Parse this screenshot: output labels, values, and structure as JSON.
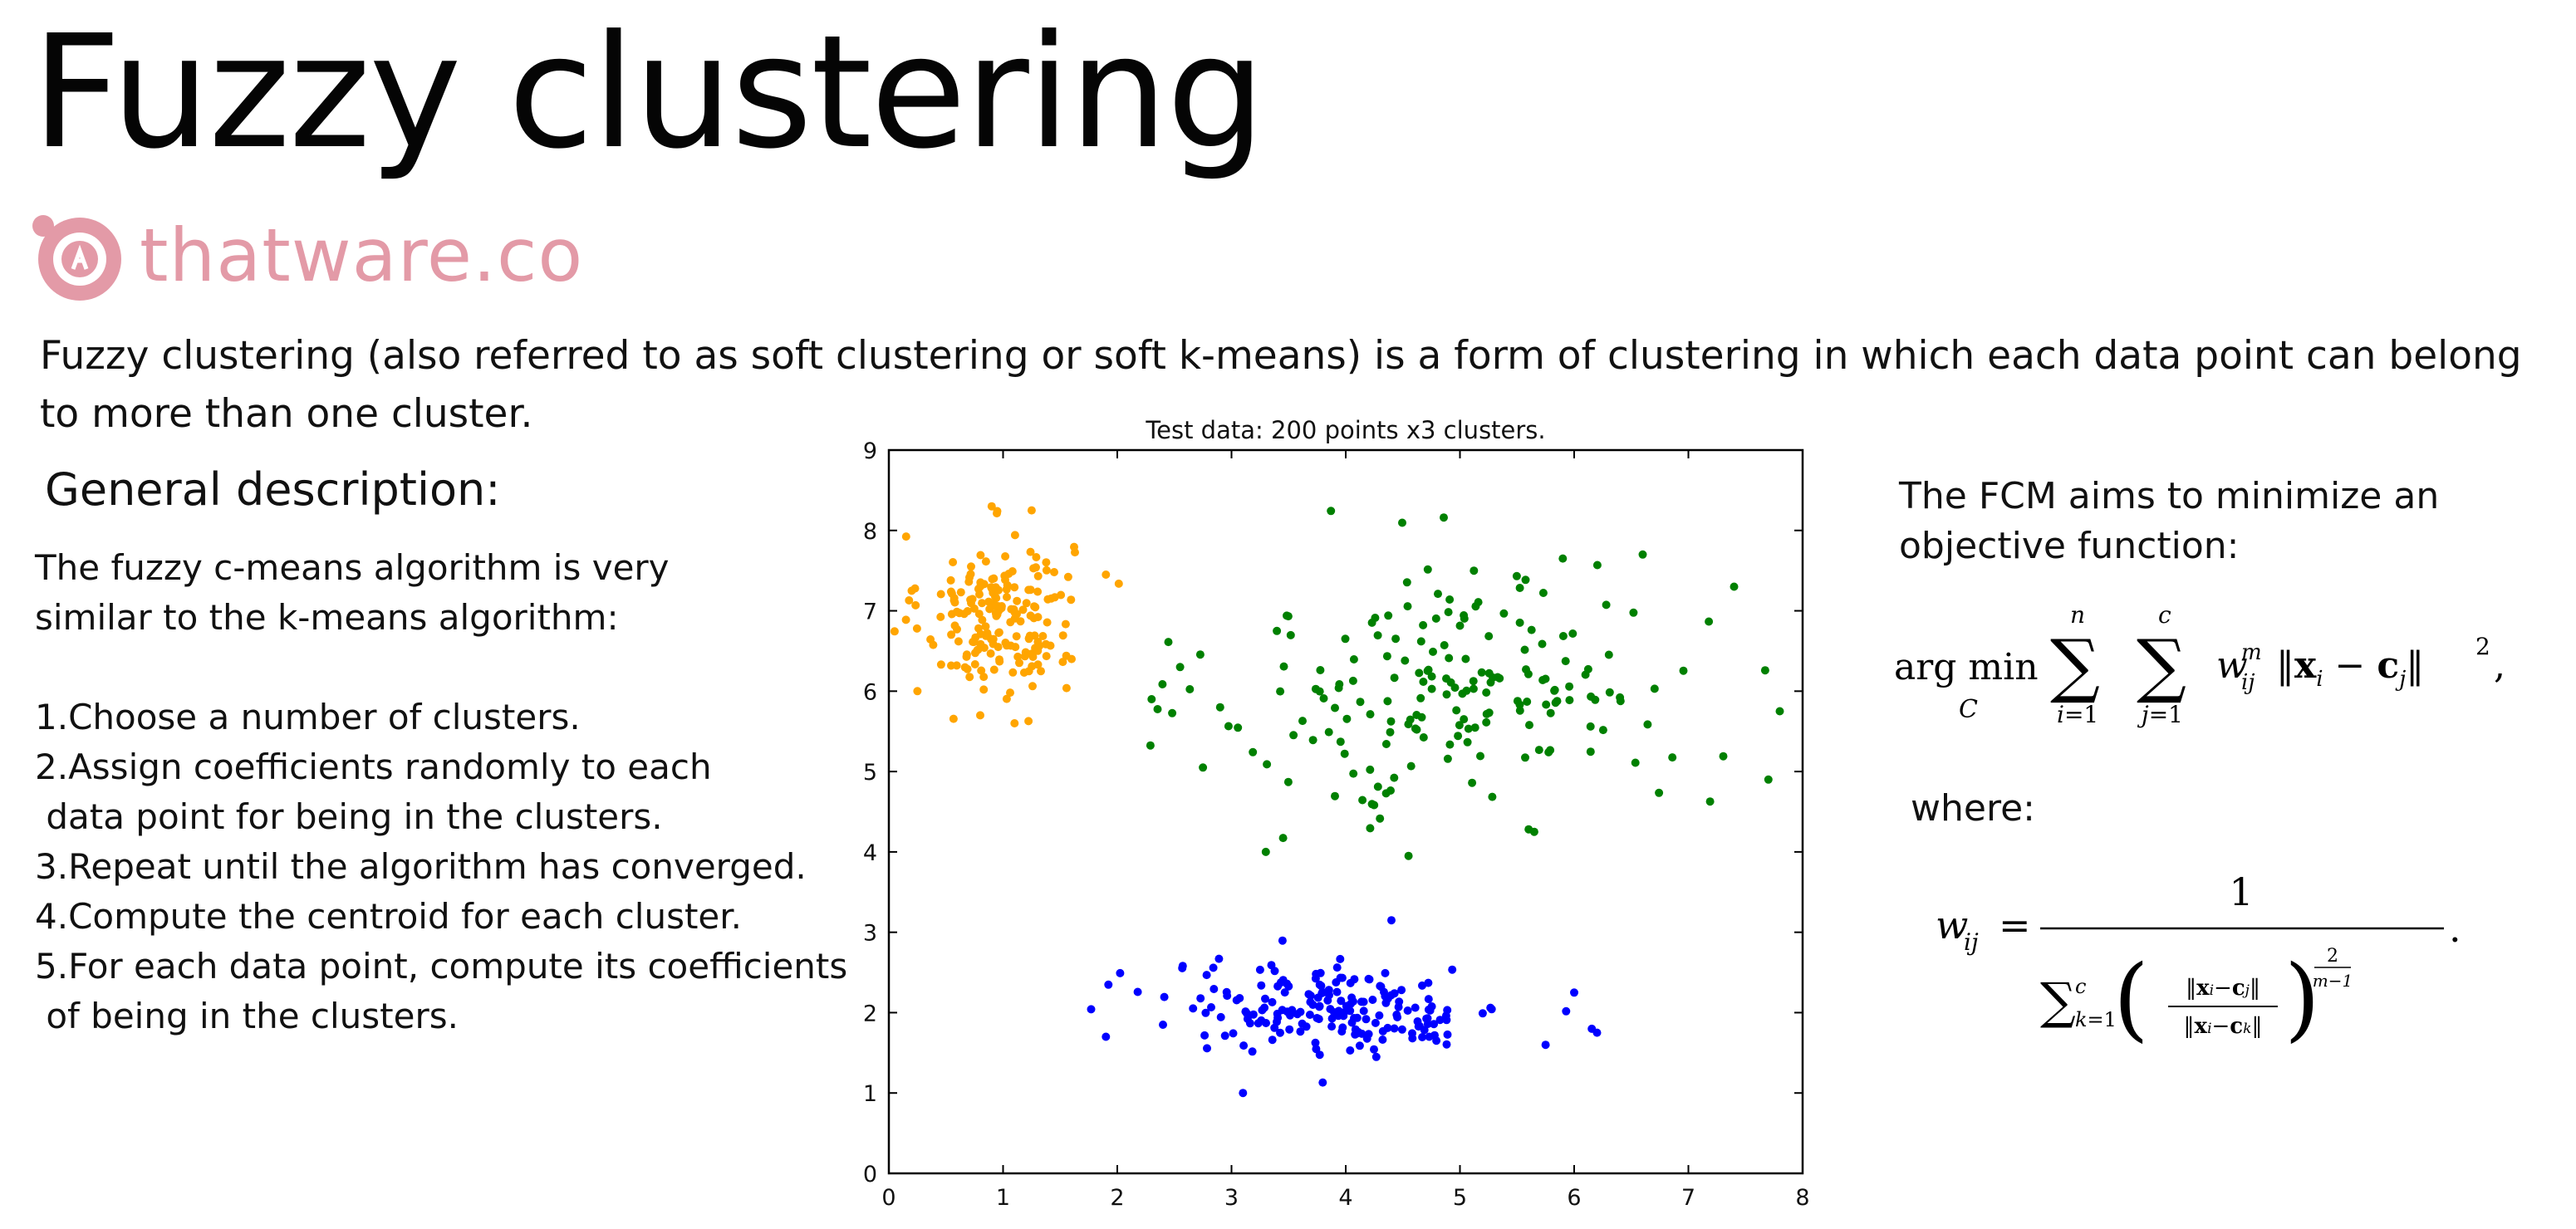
{
  "title": "Fuzzy clustering",
  "logo": {
    "text": "thatware.co",
    "icon": "thatware-logo-icon",
    "color": "#e39aa7"
  },
  "intro": "Fuzzy clustering (also referred to as soft clustering or soft k-means) is a form of clustering in which each data point can belong to more than one cluster.",
  "general": {
    "heading": "General description:",
    "lead": [
      "The fuzzy c-means algorithm is very",
      "similar to the k-means algorithm:"
    ],
    "steps": [
      "1.Choose a number of clusters.",
      "2.Assign coefficients randomly to each",
      " data point for being in the clusters.",
      "3.Repeat until the algorithm has converged.",
      "4.Compute the centroid for each cluster.",
      "5.For each data point, compute its coefficients",
      " of being in the clusters."
    ]
  },
  "fcm": {
    "lead": "The FCM aims to minimize an objective function:",
    "where": "where:"
  },
  "chart_data": {
    "type": "scatter",
    "title": "Test data: 200 points x3 clusters.",
    "xlim": [
      0,
      8
    ],
    "ylim": [
      0,
      9
    ],
    "x_ticks": [
      "0",
      "1",
      "2",
      "3",
      "4",
      "5",
      "6",
      "7",
      "8"
    ],
    "y_ticks": [
      "0",
      "1",
      "2",
      "3",
      "4",
      "5",
      "6",
      "7",
      "8",
      "9"
    ],
    "grid": false,
    "series": [
      {
        "color": "#ffa500",
        "cx": 0.95,
        "cy": 6.95,
        "sx": 0.33,
        "sy": 0.5,
        "n": 200,
        "points": [
          [
            0.9,
            8.3
          ],
          [
            1.25,
            8.25
          ],
          [
            0.8,
            5.7
          ],
          [
            1.1,
            5.6
          ],
          [
            1.9,
            7.45
          ],
          [
            0.25,
            6.0
          ],
          [
            0.2,
            7.25
          ],
          [
            1.6,
            6.4
          ]
        ]
      },
      {
        "color": "#008000",
        "cx": 5.0,
        "cy": 6.0,
        "sx": 1.05,
        "sy": 0.8,
        "n": 200,
        "points": [
          [
            2.3,
            5.9
          ],
          [
            2.55,
            6.3
          ],
          [
            2.9,
            5.8
          ],
          [
            2.75,
            5.05
          ],
          [
            3.3,
            4.0
          ],
          [
            4.55,
            3.95
          ],
          [
            5.65,
            4.25
          ],
          [
            7.4,
            7.3
          ],
          [
            7.8,
            5.75
          ],
          [
            7.7,
            4.9
          ],
          [
            6.6,
            7.7
          ],
          [
            5.9,
            7.65
          ]
        ]
      },
      {
        "color": "#0000ff",
        "cx": 3.95,
        "cy": 2.05,
        "sx": 0.75,
        "sy": 0.28,
        "n": 200,
        "points": [
          [
            1.9,
            1.7
          ],
          [
            3.1,
            1.0
          ],
          [
            4.4,
            3.15
          ],
          [
            5.75,
            1.6
          ],
          [
            6.2,
            1.75
          ],
          [
            6.0,
            2.25
          ],
          [
            2.4,
            1.85
          ]
        ]
      }
    ]
  }
}
